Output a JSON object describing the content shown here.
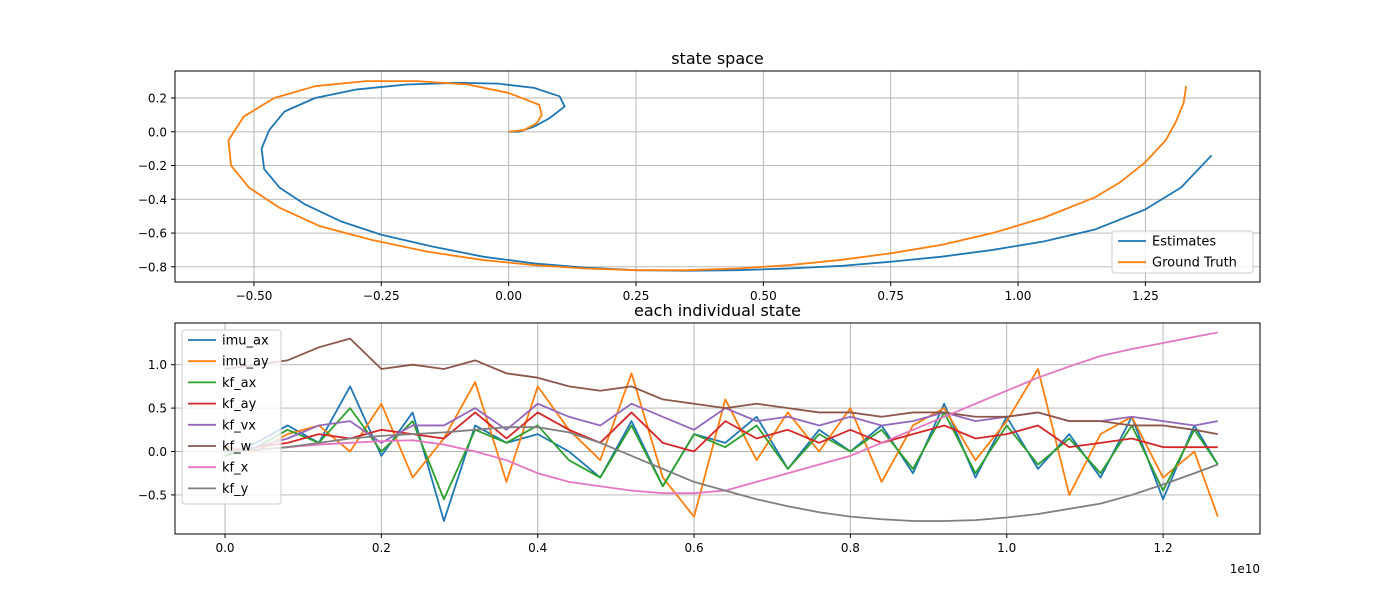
{
  "chart_data": [
    {
      "type": "line",
      "title": "state space",
      "xlabel": "",
      "ylabel": "",
      "xlim": [
        -0.655,
        1.475
      ],
      "ylim": [
        -0.89,
        0.36
      ],
      "xticks": [
        -0.5,
        -0.25,
        0.0,
        0.25,
        0.5,
        0.75,
        1.0,
        1.25
      ],
      "xtick_labels": [
        "−0.50",
        "−0.25",
        "0.00",
        "0.25",
        "0.50",
        "0.75",
        "1.00",
        "1.25"
      ],
      "yticks": [
        0.2,
        0.0,
        -0.2,
        -0.4,
        -0.6,
        -0.8
      ],
      "ytick_labels": [
        "0.2",
        "0.0",
        "−0.2",
        "−0.4",
        "−0.6",
        "−0.8"
      ],
      "grid": true,
      "legend_position": "lower-right",
      "series": [
        {
          "name": "Estimates",
          "color": "#1f77b4",
          "x": [
            0.0,
            0.02,
            0.05,
            0.08,
            0.11,
            0.1,
            0.05,
            -0.02,
            -0.1,
            -0.2,
            -0.3,
            -0.38,
            -0.44,
            -0.47,
            -0.485,
            -0.48,
            -0.45,
            -0.4,
            -0.33,
            -0.25,
            -0.15,
            -0.05,
            0.05,
            0.15,
            0.25,
            0.35,
            0.45,
            0.55,
            0.65,
            0.75,
            0.85,
            0.95,
            1.05,
            1.15,
            1.25,
            1.32,
            1.38
          ],
          "y": [
            0.0,
            0.0,
            0.03,
            0.08,
            0.15,
            0.21,
            0.26,
            0.285,
            0.29,
            0.28,
            0.25,
            0.2,
            0.12,
            0.01,
            -0.1,
            -0.22,
            -0.33,
            -0.43,
            -0.53,
            -0.61,
            -0.68,
            -0.74,
            -0.78,
            -0.805,
            -0.82,
            -0.823,
            -0.82,
            -0.81,
            -0.795,
            -0.77,
            -0.74,
            -0.7,
            -0.65,
            -0.58,
            -0.46,
            -0.33,
            -0.14
          ]
        },
        {
          "name": "Ground Truth",
          "color": "#ff7f0e",
          "x": [
            0.0,
            0.03,
            0.055,
            0.065,
            0.06,
            0.0,
            -0.08,
            -0.18,
            -0.28,
            -0.38,
            -0.46,
            -0.52,
            -0.55,
            -0.545,
            -0.51,
            -0.45,
            -0.37,
            -0.27,
            -0.16,
            -0.05,
            0.05,
            0.15,
            0.25,
            0.35,
            0.45,
            0.55,
            0.65,
            0.75,
            0.85,
            0.95,
            1.05,
            1.15,
            1.2,
            1.25,
            1.29,
            1.31,
            1.325,
            1.33
          ],
          "y": [
            0.0,
            0.01,
            0.05,
            0.1,
            0.16,
            0.23,
            0.28,
            0.3,
            0.3,
            0.27,
            0.2,
            0.09,
            -0.05,
            -0.2,
            -0.33,
            -0.45,
            -0.56,
            -0.64,
            -0.71,
            -0.76,
            -0.79,
            -0.81,
            -0.82,
            -0.82,
            -0.81,
            -0.79,
            -0.76,
            -0.72,
            -0.67,
            -0.6,
            -0.51,
            -0.39,
            -0.3,
            -0.18,
            -0.05,
            0.06,
            0.17,
            0.27
          ]
        }
      ]
    },
    {
      "type": "line",
      "title": "each individual state",
      "xlabel": "",
      "ylabel": "",
      "x_multiplier_label": "1e10",
      "xlim": [
        -0.064,
        1.324
      ],
      "ylim": [
        -0.95,
        1.48
      ],
      "xticks": [
        0.0,
        0.2,
        0.4,
        0.6,
        0.8,
        1.0,
        1.2
      ],
      "xtick_labels": [
        "0.0",
        "0.2",
        "0.4",
        "0.6",
        "0.8",
        "1.0",
        "1.2"
      ],
      "yticks": [
        1.0,
        0.5,
        0.0,
        -0.5
      ],
      "ytick_labels": [
        "1.0",
        "0.5",
        "0.0",
        "−0.5"
      ],
      "grid": true,
      "legend_position": "upper-left",
      "x": [
        0.0,
        0.04,
        0.08,
        0.12,
        0.16,
        0.2,
        0.24,
        0.28,
        0.32,
        0.36,
        0.4,
        0.44,
        0.48,
        0.52,
        0.56,
        0.6,
        0.64,
        0.68,
        0.72,
        0.76,
        0.8,
        0.84,
        0.88,
        0.92,
        0.96,
        1.0,
        1.04,
        1.08,
        1.12,
        1.16,
        1.2,
        1.24,
        1.27
      ],
      "series": [
        {
          "name": "imu_ax",
          "color": "#1f77b4",
          "values": [
            -0.05,
            0.1,
            0.3,
            0.1,
            0.75,
            -0.05,
            0.45,
            -0.8,
            0.3,
            0.1,
            0.2,
            0.0,
            -0.3,
            0.35,
            -0.4,
            0.2,
            0.1,
            0.4,
            -0.2,
            0.25,
            0.0,
            0.3,
            -0.25,
            0.55,
            -0.3,
            0.4,
            -0.2,
            0.2,
            -0.3,
            0.4,
            -0.55,
            0.3,
            -0.15
          ]
        },
        {
          "name": "imu_ay",
          "color": "#ff7f0e",
          "values": [
            0.05,
            0.0,
            0.2,
            0.3,
            0.0,
            0.55,
            -0.3,
            0.15,
            0.8,
            -0.35,
            0.75,
            0.25,
            -0.1,
            0.9,
            -0.3,
            -0.75,
            0.6,
            -0.1,
            0.45,
            0.0,
            0.5,
            -0.35,
            0.3,
            0.5,
            -0.1,
            0.35,
            0.95,
            -0.5,
            0.2,
            0.4,
            -0.3,
            0.0,
            -0.75
          ]
        },
        {
          "name": "kf_ax",
          "color": "#2ca02c",
          "values": [
            -0.05,
            0.05,
            0.25,
            0.1,
            0.5,
            0.0,
            0.35,
            -0.55,
            0.25,
            0.1,
            0.3,
            -0.1,
            -0.3,
            0.3,
            -0.4,
            0.2,
            0.05,
            0.3,
            -0.2,
            0.2,
            0.0,
            0.25,
            -0.2,
            0.45,
            -0.25,
            0.3,
            -0.15,
            0.15,
            -0.25,
            0.3,
            -0.45,
            0.25,
            -0.15
          ]
        },
        {
          "name": "kf_ay",
          "color": "#d62728",
          "values": [
            0.0,
            0.05,
            0.1,
            0.2,
            0.15,
            0.25,
            0.2,
            0.15,
            0.45,
            0.15,
            0.45,
            0.25,
            0.1,
            0.45,
            0.1,
            0.0,
            0.35,
            0.15,
            0.25,
            0.1,
            0.25,
            0.1,
            0.2,
            0.3,
            0.15,
            0.2,
            0.3,
            0.05,
            0.1,
            0.15,
            0.05,
            0.05,
            0.05
          ]
        },
        {
          "name": "kf_vx",
          "color": "#9467bd",
          "values": [
            0.0,
            0.05,
            0.15,
            0.3,
            0.35,
            0.1,
            0.3,
            0.3,
            0.5,
            0.25,
            0.55,
            0.4,
            0.3,
            0.55,
            0.4,
            0.25,
            0.5,
            0.35,
            0.4,
            0.3,
            0.4,
            0.3,
            0.35,
            0.45,
            0.35,
            0.4,
            0.45,
            0.35,
            0.35,
            0.4,
            0.35,
            0.3,
            0.35
          ]
        },
        {
          "name": "kf_w",
          "color": "#8c564b",
          "values": [
            0.95,
            1.0,
            1.05,
            1.2,
            1.3,
            0.95,
            1.0,
            0.95,
            1.05,
            0.9,
            0.85,
            0.75,
            0.7,
            0.75,
            0.6,
            0.55,
            0.5,
            0.55,
            0.5,
            0.45,
            0.45,
            0.4,
            0.45,
            0.45,
            0.4,
            0.4,
            0.45,
            0.35,
            0.35,
            0.3,
            0.3,
            0.25,
            0.2
          ]
        },
        {
          "name": "kf_x",
          "color": "#e377c2",
          "values": [
            0.0,
            0.02,
            0.05,
            0.08,
            0.1,
            0.12,
            0.13,
            0.08,
            0.0,
            -0.1,
            -0.25,
            -0.35,
            -0.4,
            -0.45,
            -0.48,
            -0.48,
            -0.45,
            -0.35,
            -0.25,
            -0.15,
            -0.05,
            0.1,
            0.25,
            0.4,
            0.55,
            0.7,
            0.85,
            0.98,
            1.1,
            1.18,
            1.25,
            1.32,
            1.37
          ]
        },
        {
          "name": "kf_y",
          "color": "#7f7f7f",
          "values": [
            0.0,
            0.02,
            0.05,
            0.1,
            0.15,
            0.18,
            0.2,
            0.22,
            0.25,
            0.28,
            0.28,
            0.22,
            0.1,
            -0.05,
            -0.2,
            -0.35,
            -0.45,
            -0.55,
            -0.63,
            -0.7,
            -0.75,
            -0.78,
            -0.8,
            -0.8,
            -0.79,
            -0.76,
            -0.72,
            -0.66,
            -0.6,
            -0.5,
            -0.38,
            -0.25,
            -0.15
          ]
        }
      ]
    }
  ]
}
